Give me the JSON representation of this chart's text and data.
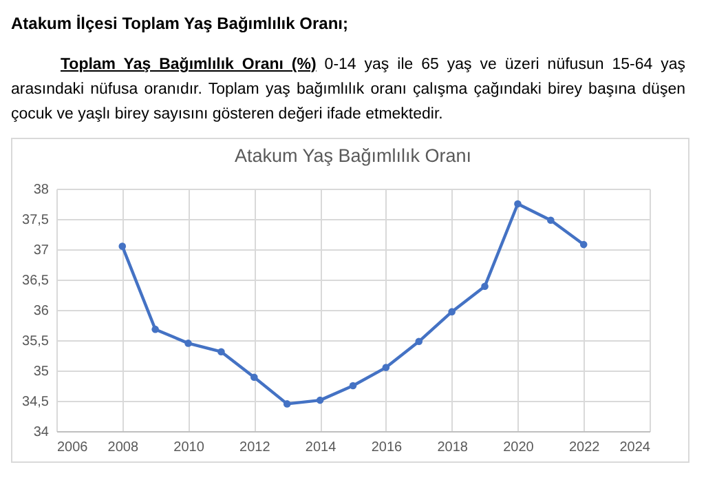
{
  "chart_data": {
    "type": "line",
    "title": "Atakum Yaş Bağımlılık Oranı",
    "annotations": [
      "Atakum İlçesi Toplam Yaş Bağımlılık Oranı;",
      "Toplam Yaş Bağımlılık Oranı (%)",
      "0-14 yaş ile 65 yaş ve üzeri nüfusun 15-64 yaş arasındaki nüfusa oranıdır. Toplam yaş bağımlılık oranı çalışma çağındaki birey başına düşen çocuk ve yaşlı birey sayısını gösteren değeri ifade etmektedir."
    ],
    "x": [
      2008,
      2009,
      2010,
      2011,
      2012,
      2013,
      2014,
      2015,
      2016,
      2017,
      2018,
      2019,
      2020,
      2021,
      2022
    ],
    "series": [
      {
        "color": "#4472c4",
        "values": [
          37.05,
          35.68,
          35.45,
          35.31,
          34.89,
          34.45,
          34.51,
          34.75,
          35.05,
          35.48,
          35.97,
          36.39,
          37.75,
          37.48,
          37.08
        ]
      }
    ],
    "xlim": [
      2006,
      2024
    ],
    "xticks": [
      2006,
      2008,
      2010,
      2012,
      2014,
      2016,
      2018,
      2020,
      2022,
      2024
    ],
    "ylim": [
      34,
      38
    ],
    "yticks": [
      34,
      {
        "value": 34.5,
        "label": "34,5"
      },
      35,
      {
        "value": 35.5,
        "label": "35,5"
      },
      36,
      {
        "value": 36.5,
        "label": "36,5"
      },
      37,
      {
        "value": 37.5,
        "label": "37,5"
      },
      38
    ],
    "grid": true,
    "legend": false,
    "marker": "circle",
    "line_style": "solid"
  }
}
